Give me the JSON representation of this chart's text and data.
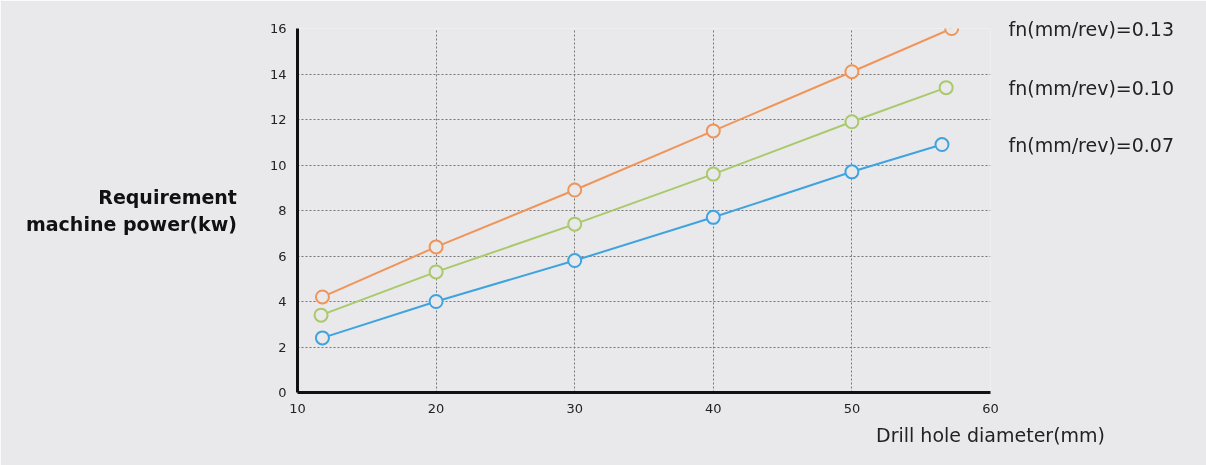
{
  "chart_data": {
    "type": "line",
    "xlabel": "Drill hole diameter(mm)",
    "ylabel": "Requirement machine power(kw)",
    "x": [
      11.8,
      20,
      30,
      40,
      50,
      57.2
    ],
    "series": [
      {
        "name": "fn(mm/rev)=0.13",
        "color": "#f0955a",
        "values": [
          4.2,
          6.4,
          8.9,
          11.5,
          14.1,
          16
        ]
      },
      {
        "name": "fn(mm/rev)=0.10",
        "color": "#a9c96b",
        "x": [
          11.7,
          20,
          30,
          40,
          50,
          56.8
        ],
        "values": [
          3.4,
          5.3,
          7.4,
          9.6,
          11.9,
          13.4
        ]
      },
      {
        "name": "fn(mm/rev)=0.07",
        "color": "#3fa3e0",
        "x": [
          11.8,
          20,
          30,
          40,
          50,
          56.5
        ],
        "values": [
          2.4,
          4.0,
          5.8,
          7.7,
          9.7,
          10.9
        ]
      }
    ],
    "xlim": [
      10,
      60
    ],
    "ylim": [
      0,
      16
    ],
    "xticks": [
      10,
      20,
      30,
      40,
      50,
      60
    ],
    "yticks": [
      0,
      2,
      4,
      6,
      8,
      10,
      12,
      14,
      16
    ],
    "grid": true,
    "marker": "circle",
    "line_style": "solid"
  }
}
